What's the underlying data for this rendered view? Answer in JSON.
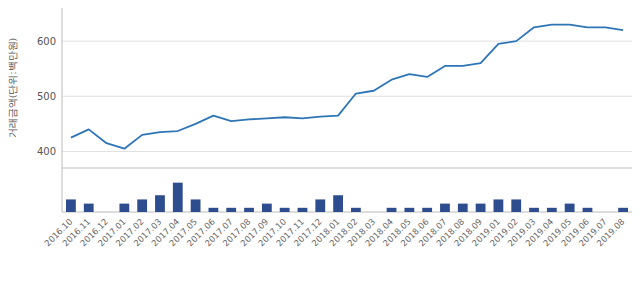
{
  "chart_data": [
    {
      "type": "line",
      "ylabel": "거래금액(단위:백만원)",
      "categories": [
        "2016.10",
        "2016.11",
        "2016.12",
        "2017.01",
        "2017.02",
        "2017.03",
        "2017.04",
        "2017.05",
        "2017.06",
        "2017.07",
        "2017.08",
        "2017.09",
        "2017.10",
        "2017.11",
        "2017.12",
        "2018.01",
        "2018.02",
        "2018.03",
        "2018.04",
        "2018.05",
        "2018.06",
        "2018.07",
        "2018.08",
        "2018.09",
        "2019.01",
        "2019.02",
        "2019.03",
        "2019.04",
        "2019.05",
        "2019.06",
        "2019.07",
        "2019.08"
      ],
      "values": [
        425,
        440,
        415,
        405,
        430,
        435,
        437,
        450,
        465,
        455,
        458,
        460,
        462,
        460,
        463,
        465,
        505,
        510,
        530,
        540,
        535,
        555,
        555,
        560,
        595,
        600,
        625,
        630,
        630,
        625,
        625,
        620
      ],
      "color": "#2E75B6",
      "ylim": [
        370,
        660
      ],
      "yticks": [
        400,
        500,
        600
      ],
      "grid": true,
      "tick_labels": "y"
    },
    {
      "type": "bar",
      "categories": [
        "2016.10",
        "2016.11",
        "2016.12",
        "2017.01",
        "2017.02",
        "2017.03",
        "2017.04",
        "2017.05",
        "2017.06",
        "2017.07",
        "2017.08",
        "2017.09",
        "2017.10",
        "2017.11",
        "2017.12",
        "2018.01",
        "2018.02",
        "2018.03",
        "2018.04",
        "2018.05",
        "2018.06",
        "2018.07",
        "2018.08",
        "2018.09",
        "2019.01",
        "2019.02",
        "2019.03",
        "2019.04",
        "2019.05",
        "2019.06",
        "2019.07",
        "2019.08"
      ],
      "values": [
        3,
        2,
        0,
        2,
        3,
        4,
        7,
        3,
        1,
        1,
        1,
        2,
        1,
        1,
        3,
        4,
        1,
        0,
        1,
        1,
        1,
        2,
        2,
        2,
        3,
        3,
        1,
        1,
        2,
        1,
        0,
        1
      ],
      "color": "#2E4D8E",
      "ylim": [
        0,
        10.5
      ],
      "grid": false,
      "tick_labels": "x"
    }
  ]
}
